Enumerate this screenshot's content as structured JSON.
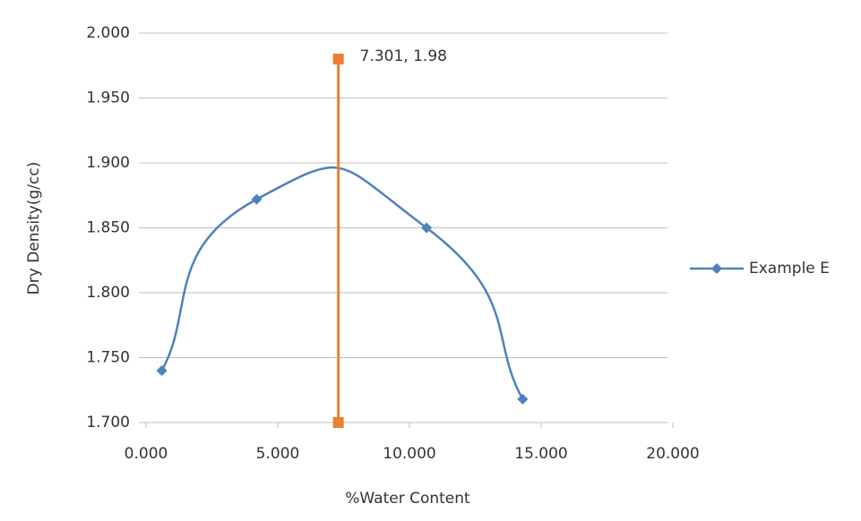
{
  "chart_data": {
    "type": "scatter",
    "x_label": "%Water Content",
    "y_label": "Dry Density(g/cc)",
    "xlim": [
      0,
      20
    ],
    "ylim": [
      1.7,
      2.0
    ],
    "xticks": [
      {
        "value": 0,
        "label": "0.000"
      },
      {
        "value": 5,
        "label": "5.000"
      },
      {
        "value": 10,
        "label": "10.000"
      },
      {
        "value": 15,
        "label": "15.000"
      },
      {
        "value": 20,
        "label": "20.000"
      }
    ],
    "yticks": [
      {
        "value": 1.7,
        "label": "1.700"
      },
      {
        "value": 1.75,
        "label": "1.750"
      },
      {
        "value": 1.8,
        "label": "1.800"
      },
      {
        "value": 1.85,
        "label": "1.850"
      },
      {
        "value": 1.9,
        "label": "1.900"
      },
      {
        "value": 1.95,
        "label": "1.950"
      },
      {
        "value": 2.0,
        "label": "2.000"
      }
    ],
    "grid": true,
    "legend": "right",
    "series": [
      {
        "name": "Example E",
        "color": "#4f81bd",
        "marker": "diamond",
        "smooth": true,
        "x": [
          0.6,
          4.2,
          10.65,
          14.3
        ],
        "values": [
          1.74,
          1.872,
          1.85,
          1.718
        ]
      },
      {
        "color": "#ed7d31",
        "marker": "square",
        "smooth": false,
        "x": [
          7.301,
          7.301
        ],
        "values": [
          1.98,
          1.7
        ],
        "value_labels": [
          "7.301, 1.98",
          null
        ]
      }
    ]
  }
}
